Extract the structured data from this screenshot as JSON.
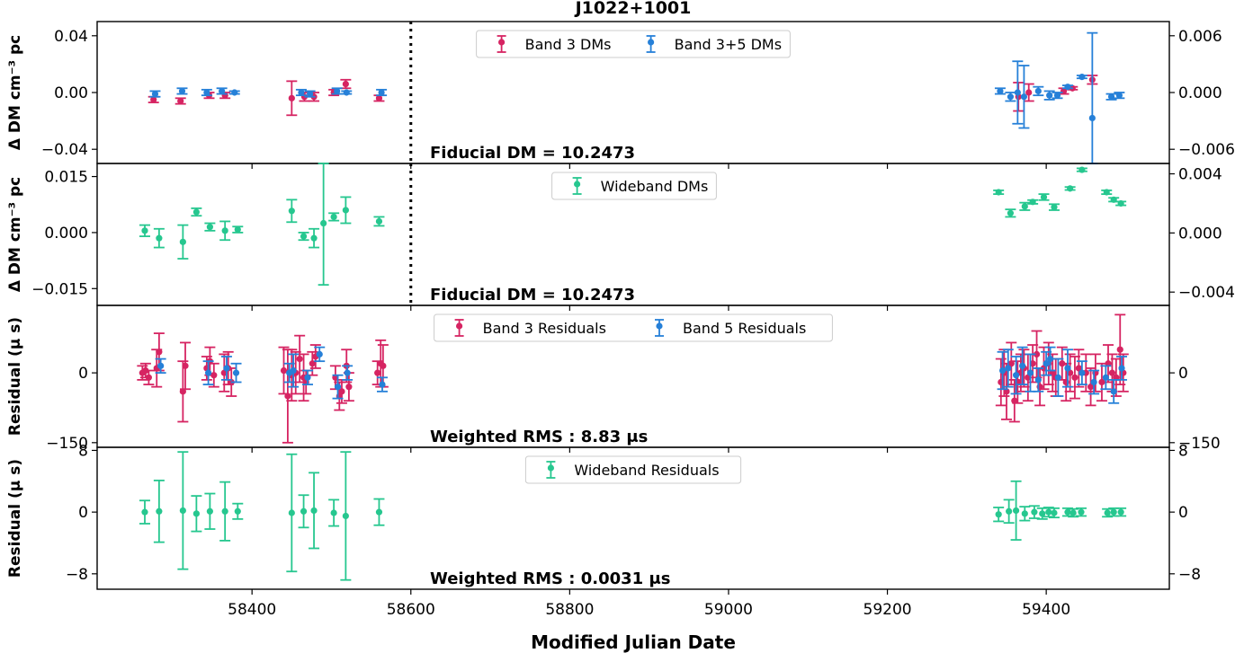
{
  "chart_data": [
    {
      "type": "scatter",
      "title": "J1022+1001",
      "ylabel": "Δ DM  cm⁻³ pc",
      "ylim": [
        -0.05,
        0.05
      ],
      "yticks": [
        "−0.04",
        "0.00",
        "0.04"
      ],
      "y2lim": [
        -0.0075,
        0.0075
      ],
      "y2ticks": [
        "−0.006",
        "0.000",
        "0.006"
      ],
      "annotation": "Fiducial DM = 10.2473",
      "legend_position": "top-center",
      "series": [
        {
          "name": "Band 3 DMs",
          "color": "#d62462",
          "x": [
            58276,
            58310,
            58346,
            58366,
            58450,
            58466,
            58478,
            58503,
            58518,
            58560,
            59365,
            59378,
            59422,
            59433,
            59458
          ],
          "y": [
            -0.005,
            -0.006,
            -0.002,
            -0.002,
            -0.004,
            -0.003,
            -0.003,
            0.0,
            0.006,
            -0.004,
            -0.003,
            0.0,
            0.001,
            0.003,
            0.009
          ],
          "err": [
            0.002,
            0.002,
            0.002,
            0.002,
            0.012,
            0.003,
            0.003,
            0.002,
            0.003,
            0.002,
            0.01,
            0.006,
            0.002,
            0.001,
            0.003
          ]
        },
        {
          "name": "Band 3+5 DMs",
          "color": "#2680d8",
          "x": [
            58278,
            58312,
            58343,
            58362,
            58378,
            58462,
            58473,
            58507,
            58519,
            58563,
            59342,
            59355,
            59364,
            59372,
            59390,
            59404,
            59414,
            59427,
            59445,
            59458,
            59482,
            59492
          ],
          "y": [
            -0.001,
            0.001,
            0.0,
            0.001,
            0.0,
            0.0,
            -0.001,
            0.001,
            0.0,
            0.0,
            0.001,
            -0.003,
            0.0,
            -0.003,
            0.001,
            -0.002,
            -0.002,
            0.004,
            0.011,
            -0.018,
            -0.003,
            -0.002
          ],
          "err": [
            0.002,
            0.002,
            0.002,
            0.002,
            0.001,
            0.002,
            0.002,
            0.002,
            0.001,
            0.002,
            0.002,
            0.003,
            0.022,
            0.022,
            0.003,
            0.003,
            0.002,
            0.001,
            0.001,
            0.06,
            0.002,
            0.002
          ]
        }
      ]
    },
    {
      "type": "scatter",
      "ylabel": "Δ DM  cm⁻³ pc",
      "ylim": [
        -0.0195,
        0.0185
      ],
      "yticks": [
        "−0.015",
        "0.000",
        "0.015"
      ],
      "y2lim": [
        -0.0049,
        0.0047
      ],
      "y2ticks": [
        "−0.004",
        "0.000",
        "0.004"
      ],
      "annotation": "Fiducial DM = 10.2473",
      "legend_position": "top-center",
      "series": [
        {
          "name": "Wideband DMs",
          "color": "#26c78f",
          "x": [
            58265,
            58283,
            58313,
            58330,
            58347,
            58366,
            58382,
            58450,
            58465,
            58478,
            58490,
            58503,
            58518,
            58560,
            59340,
            59355,
            59373,
            59383,
            59397,
            59410,
            59430,
            59445,
            59476,
            59485,
            59494
          ],
          "y": [
            0.0005,
            -0.0015,
            -0.0025,
            0.0055,
            0.0015,
            0.0005,
            0.0008,
            0.0058,
            -0.001,
            -0.0015,
            0.0025,
            0.0042,
            0.006,
            0.003,
            0.0108,
            0.0052,
            0.007,
            0.0082,
            0.0095,
            0.0068,
            0.0118,
            0.0168,
            0.0108,
            0.0088,
            0.0078
          ],
          "err": [
            0.0015,
            0.0025,
            0.0045,
            0.001,
            0.001,
            0.0025,
            0.0008,
            0.003,
            0.001,
            0.0025,
            0.0165,
            0.001,
            0.0035,
            0.0012,
            0.0005,
            0.001,
            0.001,
            0.0005,
            0.0008,
            0.0008,
            0.0004,
            0.0004,
            0.0005,
            0.0005,
            0.0005
          ]
        }
      ]
    },
    {
      "type": "scatter",
      "ylabel": "Residual (μ s)",
      "ylim": [
        -160,
        145
      ],
      "yticks": [
        "−150",
        "0"
      ],
      "y2lim": [
        -160,
        145
      ],
      "y2ticks": [
        "−150",
        "0"
      ],
      "annotation": "Weighted RMS : 8.83 μs",
      "legend_position": "top-center",
      "series": [
        {
          "name": "Band 3 Residuals",
          "color": "#d62462",
          "x": [
            58262,
            58266,
            58270,
            58280,
            58283,
            58313,
            58316,
            58343,
            58347,
            58352,
            58365,
            58370,
            58374,
            58440,
            58445,
            58450,
            58455,
            58460,
            58465,
            58468,
            58476,
            58480,
            58505,
            58510,
            58513,
            58519,
            58522,
            58558,
            58562,
            58565,
            59343,
            59347,
            59350,
            59356,
            59360,
            59364,
            59368,
            59372,
            59377,
            59383,
            59388,
            59392,
            59397,
            59403,
            59408,
            59412,
            59420,
            59425,
            59430,
            59436,
            59441,
            59450,
            59456,
            59462,
            59470,
            59478,
            59483,
            59488,
            59493,
            59497
          ],
          "y": [
            0,
            5,
            -10,
            10,
            45,
            -40,
            15,
            10,
            25,
            -5,
            0,
            10,
            -20,
            5,
            -50,
            -5,
            0,
            30,
            -10,
            -20,
            20,
            35,
            -10,
            -50,
            -40,
            15,
            -30,
            0,
            20,
            15,
            -20,
            0,
            -40,
            20,
            -60,
            -20,
            0,
            10,
            -10,
            20,
            40,
            -30,
            10,
            20,
            0,
            -10,
            20,
            -20,
            0,
            -10,
            10,
            0,
            -30,
            0,
            -20,
            20,
            0,
            -10,
            50,
            0
          ],
          "err": [
            15,
            15,
            15,
            40,
            40,
            65,
            50,
            25,
            30,
            25,
            40,
            35,
            30,
            50,
            100,
            55,
            45,
            50,
            50,
            25,
            25,
            25,
            25,
            30,
            25,
            35,
            30,
            25,
            50,
            45,
            50,
            50,
            60,
            45,
            45,
            45,
            40,
            40,
            50,
            40,
            50,
            40,
            45,
            45,
            40,
            40,
            35,
            40,
            40,
            45,
            40,
            40,
            40,
            40,
            40,
            40,
            40,
            40,
            75,
            40
          ]
        },
        {
          "name": "Band 5 Residuals",
          "color": "#2680d8",
          "x": [
            58285,
            58345,
            58368,
            58380,
            58447,
            58452,
            58470,
            58485,
            58508,
            58520,
            58564,
            59345,
            59352,
            59362,
            59370,
            59380,
            59390,
            59400,
            59405,
            59415,
            59427,
            59445,
            59460,
            59475,
            59485,
            59495
          ],
          "y": [
            15,
            0,
            10,
            0,
            0,
            5,
            -10,
            40,
            -30,
            0,
            -25,
            5,
            10,
            -5,
            15,
            0,
            -15,
            20,
            30,
            -10,
            10,
            0,
            -20,
            -10,
            -40,
            10
          ],
          "err": [
            15,
            25,
            25,
            20,
            20,
            35,
            15,
            15,
            25,
            15,
            15,
            40,
            40,
            40,
            40,
            40,
            25,
            25,
            25,
            40,
            40,
            25,
            25,
            25,
            25,
            25
          ]
        }
      ]
    },
    {
      "type": "scatter",
      "ylabel": "Residual (μ s)",
      "xlabel": "Modified Julian Date",
      "ylim": [
        -10,
        8.4
      ],
      "yticks": [
        "8",
        "0",
        "−8"
      ],
      "y2lim": [
        -10,
        8.4
      ],
      "y2ticks": [
        "8",
        "0",
        "−8"
      ],
      "xlim": [
        58205,
        59555
      ],
      "xticks": [
        58400,
        58600,
        58800,
        59000,
        59200,
        59400
      ],
      "annotation": "Weighted RMS : 0.0031 μs",
      "legend_position": "top-center",
      "series": [
        {
          "name": "Wideband Residuals",
          "color": "#26c78f",
          "x": [
            58265,
            58283,
            58313,
            58330,
            58347,
            58366,
            58382,
            58450,
            58465,
            58478,
            58503,
            58518,
            58560,
            59340,
            59353,
            59362,
            59373,
            59385,
            59395,
            59403,
            59410,
            59427,
            59434,
            59444,
            59477,
            59485,
            59494
          ],
          "y": [
            0,
            0.1,
            0.2,
            -0.2,
            0.1,
            0.1,
            0.1,
            -0.1,
            0.1,
            0.2,
            -0.1,
            -0.5,
            0,
            -0.3,
            0.1,
            0.2,
            -0.2,
            0.0,
            -0.2,
            0.0,
            -0.1,
            0.0,
            -0.1,
            0.0,
            -0.1,
            0.0,
            0.0
          ],
          "err": [
            1.5,
            4.0,
            7.6,
            2.3,
            2.3,
            3.8,
            1.0,
            7.6,
            2.1,
            4.9,
            1.7,
            8.3,
            1.7,
            0.9,
            1.5,
            3.8,
            0.9,
            0.8,
            0.7,
            0.6,
            0.6,
            0.5,
            0.5,
            0.5,
            0.5,
            0.5,
            0.5
          ]
        }
      ]
    }
  ],
  "vertical_marker_mjd": 58600
}
